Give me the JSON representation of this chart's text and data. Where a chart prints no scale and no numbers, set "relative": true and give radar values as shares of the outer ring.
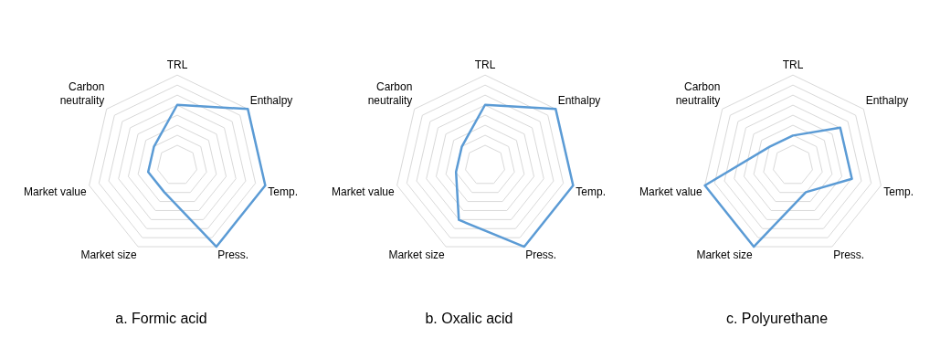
{
  "chart_data": [
    {
      "type": "radar",
      "title": "a. Formic acid",
      "relative": true,
      "categories": [
        "TRL",
        "Enthalpy",
        "Temp.",
        "Press.",
        "Market size",
        "Market value",
        "Carbon neutrality"
      ],
      "series": [
        {
          "color": "#5b9bd5",
          "values": [
            0.67,
            1,
            1,
            1,
            0.33,
            0.33,
            0.33
          ]
        }
      ],
      "marker": "none",
      "grid": true,
      "legend": false
    },
    {
      "type": "radar",
      "title": "b. Oxalic acid",
      "relative": true,
      "categories": [
        "TRL",
        "Enthalpy",
        "Temp.",
        "Press.",
        "Market size",
        "Market value",
        "Carbon neutrality"
      ],
      "series": [
        {
          "color": "#5b9bd5",
          "values": [
            0.67,
            1,
            1,
            1,
            0.67,
            0.33,
            0.33
          ]
        }
      ],
      "marker": "none",
      "grid": true,
      "legend": false
    },
    {
      "type": "radar",
      "title": "c. Polyurethane",
      "relative": true,
      "categories": [
        "TRL",
        "Enthalpy",
        "Temp.",
        "Press.",
        "Market size",
        "Market value",
        "Carbon neutrality"
      ],
      "series": [
        {
          "color": "#5b9bd5",
          "values": [
            0.33,
            0.67,
            0.67,
            0.33,
            1,
            1,
            0.33
          ]
        }
      ],
      "marker": "none",
      "grid": true,
      "legend": false
    }
  ]
}
